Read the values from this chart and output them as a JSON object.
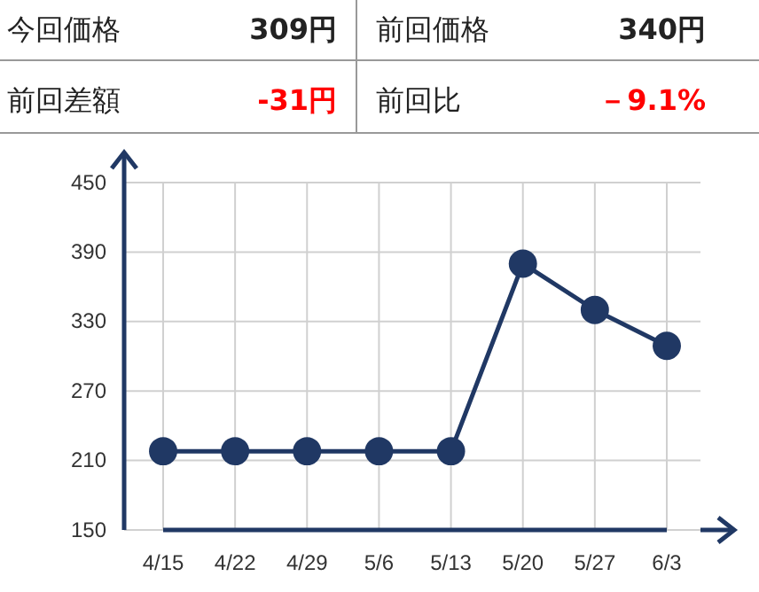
{
  "chart_data": {
    "type": "line",
    "annotations": [
      "今回価格",
      "309円",
      "前回価格",
      "340円",
      "前回差額",
      "-31円",
      "前回比",
      "－9.1%"
    ],
    "categories": [
      "4/15",
      "4/22",
      "4/29",
      "5/6",
      "5/13",
      "5/20",
      "5/27",
      "6/3"
    ],
    "series": [
      {
        "color": "#203864",
        "values": [
          218,
          218,
          218,
          218,
          218,
          380,
          340,
          309
        ]
      }
    ],
    "ylim": [
      150,
      450
    ],
    "yticks": [
      150,
      210,
      270,
      330,
      390,
      450
    ],
    "grid": true,
    "marker": "circle",
    "line_style": "solid"
  }
}
